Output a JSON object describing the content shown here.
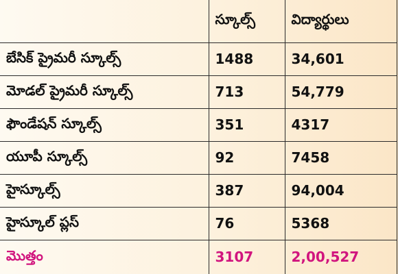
{
  "table": {
    "headers": [
      "",
      "స్కూల్స్",
      "విద్యార్థులు"
    ],
    "rows": [
      {
        "label": "బేసిక్ ప్రైమరీ స్కూల్స్",
        "schools": "1488",
        "students": "34,601"
      },
      {
        "label": "మోడల్ ప్రైమరీ స్కూల్స్",
        "schools": "713",
        "students": "54,779"
      },
      {
        "label": "ఫౌండేషన్ స్కూల్స్",
        "schools": "351",
        "students": "4317"
      },
      {
        "label": "యూపీ స్కూల్స్",
        "schools": "92",
        "students": "7458"
      },
      {
        "label": "హైస్కూల్స్",
        "schools": "387",
        "students": "94,004"
      },
      {
        "label": "హైస్కూల్ ప్లస్",
        "schools": "76",
        "students": "5368"
      }
    ],
    "total": {
      "label": "మొత్తం",
      "schools": "3107",
      "students": "2,00,527"
    }
  },
  "colors": {
    "header_text": "#d1157e",
    "body_text": "#111111",
    "grid_line": "#2a2a2a",
    "background": "#fdf1dd"
  }
}
